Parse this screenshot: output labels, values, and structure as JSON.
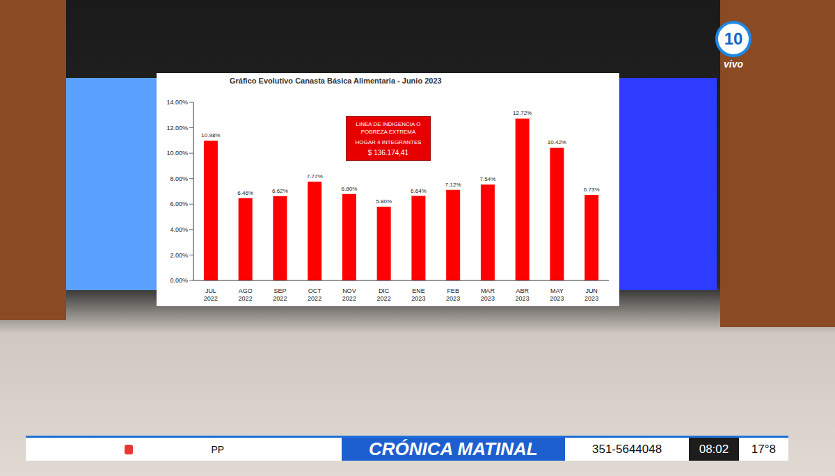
{
  "chart_data": {
    "type": "bar",
    "title": "Gráfico Evolutivo Canasta Básica Alimentaria - Junio 2023",
    "categories": [
      "JUL 2022",
      "AGO 2022",
      "SEP 2022",
      "OCT 2022",
      "NOV 2022",
      "DIC 2022",
      "ENE 2023",
      "FEB 2023",
      "MAR 2023",
      "ABR 2023",
      "MAY 2023",
      "JUN 2023"
    ],
    "values": [
      10.98,
      6.46,
      6.62,
      7.77,
      6.8,
      5.8,
      6.64,
      7.12,
      7.54,
      12.72,
      10.42,
      6.73
    ],
    "value_labels": [
      "10.98%",
      "6.46%",
      "6.62%",
      "7.77%",
      "6.80%",
      "5.80%",
      "6.64%",
      "7.12%",
      "7.54%",
      "12.72%",
      "10.42%",
      "6.73%"
    ],
    "data_labels": true,
    "color": "#ff0000",
    "ylim": [
      0,
      14
    ],
    "yticks": [
      {
        "value": 0,
        "label": "0.00%"
      },
      {
        "value": 2,
        "label": "2.00%"
      },
      {
        "value": 4,
        "label": "4.00%"
      },
      {
        "value": 6,
        "label": "6.00%"
      },
      {
        "value": 8,
        "label": "8.00%"
      },
      {
        "value": 10,
        "label": "10.00%"
      },
      {
        "value": 12,
        "label": "12.00%"
      },
      {
        "value": 14,
        "label": "14.00%"
      }
    ],
    "grid": false,
    "annotations": [
      "LINEA DE INDIGENCIA O POBREZA EXTREMA",
      "HOGAR 4 INTEGRANTES",
      "$ 136.174,41"
    ]
  },
  "broadcast": {
    "channel": "10",
    "status": "vivo",
    "show": "CRÓNICA MATINAL",
    "ticker": "PP",
    "phone": "351-5644048",
    "time": "08:02",
    "temperature": "17°8"
  }
}
